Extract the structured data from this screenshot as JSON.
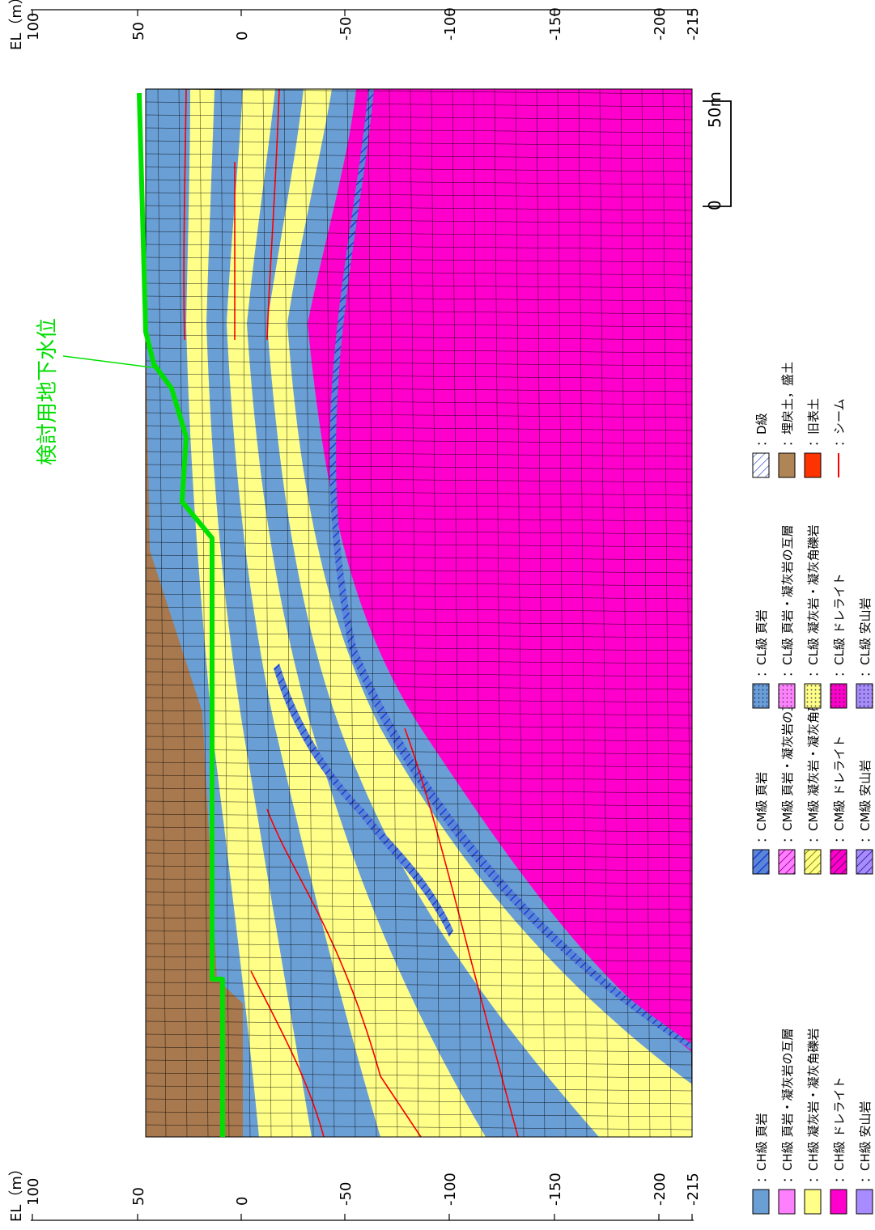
{
  "axis": {
    "title": "EL（m）",
    "ticks": [
      "100",
      "50",
      "0",
      "-50",
      "-100",
      "-150",
      "-200",
      "-215"
    ]
  },
  "scale_bar": {
    "labels": [
      "50m",
      "0"
    ]
  },
  "water_level_label": "検討用地下水位",
  "legend": {
    "ch": [
      {
        "label": "：CH級 頁岩",
        "color": "#6a9fd6"
      },
      {
        "label": "：CH級 頁岩・凝灰岩の互層",
        "color": "#ff80ff"
      },
      {
        "label": "：CH級 凝灰岩・凝灰角礫岩",
        "color": "#ffff88"
      },
      {
        "label": "：CH級 ドレライト",
        "color": "#ff00cc"
      },
      {
        "label": "：CH級 安山岩",
        "color": "#a88cff"
      }
    ],
    "cm": [
      {
        "label": "：CM級 頁岩",
        "color": "#6a9fd6"
      },
      {
        "label": "：CM級 頁岩・凝灰岩の互層",
        "color": "#ff80ff"
      },
      {
        "label": "：CM級 凝灰岩・凝灰角礫岩",
        "color": "#ffff88"
      },
      {
        "label": "：CM級 ドレライト",
        "color": "#ff00cc"
      },
      {
        "label": "：CM級 安山岩",
        "color": "#a88cff"
      }
    ],
    "cl": [
      {
        "label": "：CL級 頁岩",
        "color": "#6a9fd6"
      },
      {
        "label": "：CL級 頁岩・凝灰岩の互層",
        "color": "#ff80ff"
      },
      {
        "label": "：CL級 凝灰岩・凝灰角礫岩",
        "color": "#ffff88"
      },
      {
        "label": "：CL級 ドレライト",
        "color": "#ff00cc"
      },
      {
        "label": "：CL級 安山岩",
        "color": "#a88cff"
      }
    ],
    "other": [
      {
        "label": "：D級",
        "color": "#ffffff"
      },
      {
        "label": "：埋戻土，盛土",
        "color": "#b08556"
      },
      {
        "label": "：旧表土",
        "color": "#ff3300"
      },
      {
        "label": "：シーム",
        "color": "#ff0000"
      }
    ]
  },
  "colors": {
    "dolerite": "#ff00cc",
    "shale": "#6a9fd6",
    "tuff": "#ffff88",
    "fill": "#a8794e",
    "water": "#00e000",
    "seam": "#ff0000",
    "hatch": "#1f3bd6"
  }
}
